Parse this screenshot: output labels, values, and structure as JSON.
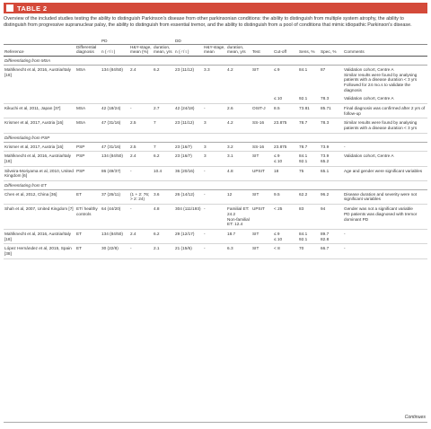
{
  "header": {
    "label": "TABLE 2"
  },
  "caption": "Overview of the included studies testing the ability to distinguish Parkinson's disease from other parkinsonian conditions: the ability to distinguish from multiple system atrophy, the ability to distinguish from progressive supranuclear palsy, the ability to distinguish from essential tremor, and the ability to distinguish from a pool of conditions that mimic idiopathic Parkinson's disease.",
  "groups": {
    "pd": "PD",
    "dd": "DD"
  },
  "columns": {
    "reference": "Reference",
    "diff": "Differential diagnosis",
    "pd_n": "n (♂/♀)",
    "pd_hy": "H&Y-stage, mean (%)",
    "pd_dur": "duration, mean, yrs",
    "dd_n": "n (♂/♀)",
    "dd_hy": "H&Y-stage, mean",
    "dd_dur": "duration, mean, yrs",
    "test": "Test",
    "cutoff": "Cut-off",
    "sens": "Sens, %",
    "spec": "Spec, %",
    "comments": "Comments"
  },
  "sections": [
    {
      "title": "Differentiating from MSA",
      "rows": [
        [
          "Mahlknecht et al, 2016, Austria/Italy [18]",
          "MSA",
          "134 (84/50)",
          "2.4",
          "6.2",
          "23 (11/12)",
          "3.3",
          "4.2",
          "SIT",
          "≤ 9",
          "84.1",
          "87",
          "Validation cohort, Centre A\nSimilar results were found by analysing patients with a disease duration < 3 yrs\nFollowed for 24 mo.s to validate the diagnosis"
        ],
        [
          "",
          "",
          "",
          "",
          "",
          "",
          "",
          "",
          "",
          "≤ 10",
          "92.1",
          "78.3",
          "Validation cohort, Centre A"
        ],
        [
          "Kikuchi et al, 2011, Japan [37]",
          "MSA",
          "42 (18/24)",
          "-",
          "2.7",
          "42 (24/18)",
          "-",
          "2.6",
          "OSIT-J",
          "8.5",
          "73.81",
          "85.71",
          "Final diagnosis was confirmed after 2 yrs of follow-up"
        ],
        [
          "Krismer et al, 2017, Austria [16]",
          "MSA",
          "47 (31/16)",
          "2.5",
          "7",
          "23 (11/12)",
          "3",
          "4.2",
          "SS-16",
          "23.875",
          "78.7",
          "78.3",
          "Similar results were found by analysing patients with a disease duration < 3 yrs"
        ]
      ]
    },
    {
      "title": "Differentiating from PSP",
      "rows": [
        [
          "Krismer et al, 2017, Austria [16]",
          "PSP",
          "47 (31/16)",
          "2.5",
          "7",
          "23 (16/7)",
          "3",
          "3.2",
          "SS-16",
          "23.875",
          "78.7",
          "73.9",
          "-"
        ],
        [
          "Mahlknecht et al, 2016, Austria/Italy [18]",
          "PSP",
          "134 (84/50)",
          "2.4",
          "6.2",
          "23 (16/7)",
          "3",
          "3.1",
          "SIT",
          "≤ 9\n≤ 10",
          "84.1\n92.1",
          "73.9\n65.2",
          "Validation cohort, Centre A"
        ],
        [
          "Silveira-Moriyama et al, 2010, United Kingdom [6]",
          "PSP",
          "86 (49/37)",
          "-",
          "10.4",
          "36 (20/16)",
          "-",
          "4.8",
          "UPSIT",
          "18",
          "75",
          "65.1",
          "Age and gender were significant variables"
        ]
      ]
    },
    {
      "title": "Differentiating from ET",
      "rows": [
        [
          "Chen et al, 2012, China [36]",
          "ET",
          "37 (26/11)",
          "(1 + 2: 76; > 2: 24)",
          "3.6",
          "26 (14/12)",
          "-",
          "12",
          "SIT",
          "9.5",
          "62.2",
          "96.2",
          "Disease duration and severity were not significant variables"
        ],
        [
          "Shah et al, 2007, United Kingdom [7]",
          "ET/ healthy controls",
          "64 (44/20)",
          "-",
          "4.8",
          "304 (111/193)",
          "-",
          "Familial ET: 24.2\nNon-familial ET: 12.4",
          "UPSIT",
          "< 25",
          "83",
          "94",
          "Gender was not a significant variable\nPD patients was diagnosed with tremor dominant PD"
        ],
        [
          "Mahlknecht et al, 2016, Austria/Italy [18]",
          "ET",
          "134 (84/50)",
          "2.4",
          "6.2",
          "29 (12/17)",
          "-",
          "18.7",
          "SIT",
          "≤ 9\n≤ 10",
          "84.1\n92.1",
          "89.7\n82.8",
          "-"
        ],
        [
          "López Hernández et al, 2015, Spain [38]",
          "ET",
          "30 (22/8)",
          "-",
          "2.1",
          "21 (15/6)",
          "-",
          "6.3",
          "SIT",
          "< 8",
          "70",
          "66.7",
          "-"
        ]
      ]
    }
  ],
  "footer": "Continues"
}
